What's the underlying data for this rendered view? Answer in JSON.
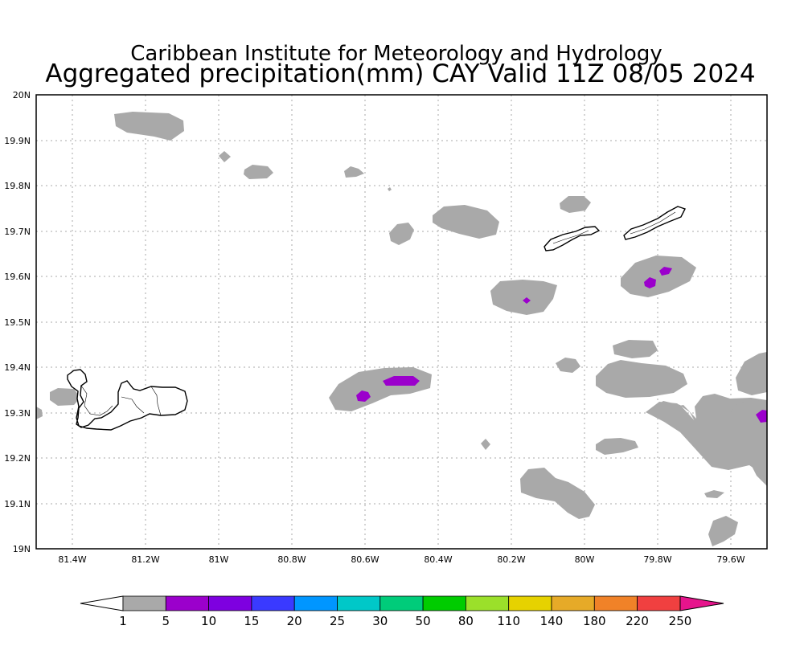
{
  "title": {
    "line1": "Caribbean Institute for Meteorology and Hydrology",
    "line2": "Aggregated precipitation(mm) CAY Valid 11Z 08/05 2024"
  },
  "axes": {
    "x_ticks": [
      "81.4W",
      "81.2W",
      "81W",
      "80.8W",
      "80.6W",
      "80.4W",
      "80.2W",
      "80W",
      "79.8W",
      "79.6W"
    ],
    "y_ticks": [
      "20N",
      "19.9N",
      "19.8N",
      "19.7N",
      "19.6N",
      "19.5N",
      "19.4N",
      "19.3N",
      "19.2N",
      "19.1N",
      "19N"
    ]
  },
  "colorbar": {
    "labels": [
      "1",
      "5",
      "10",
      "15",
      "20",
      "25",
      "30",
      "50",
      "80",
      "110",
      "140",
      "180",
      "220",
      "250"
    ],
    "colors": [
      "#a9a9a9",
      "#9b00cc",
      "#7e00e0",
      "#3a3aff",
      "#0096ff",
      "#00c8c8",
      "#00cc7a",
      "#00cc00",
      "#9be02a",
      "#e6d200",
      "#e6aa28",
      "#f08228",
      "#f04040",
      "#e6148c"
    ]
  }
}
